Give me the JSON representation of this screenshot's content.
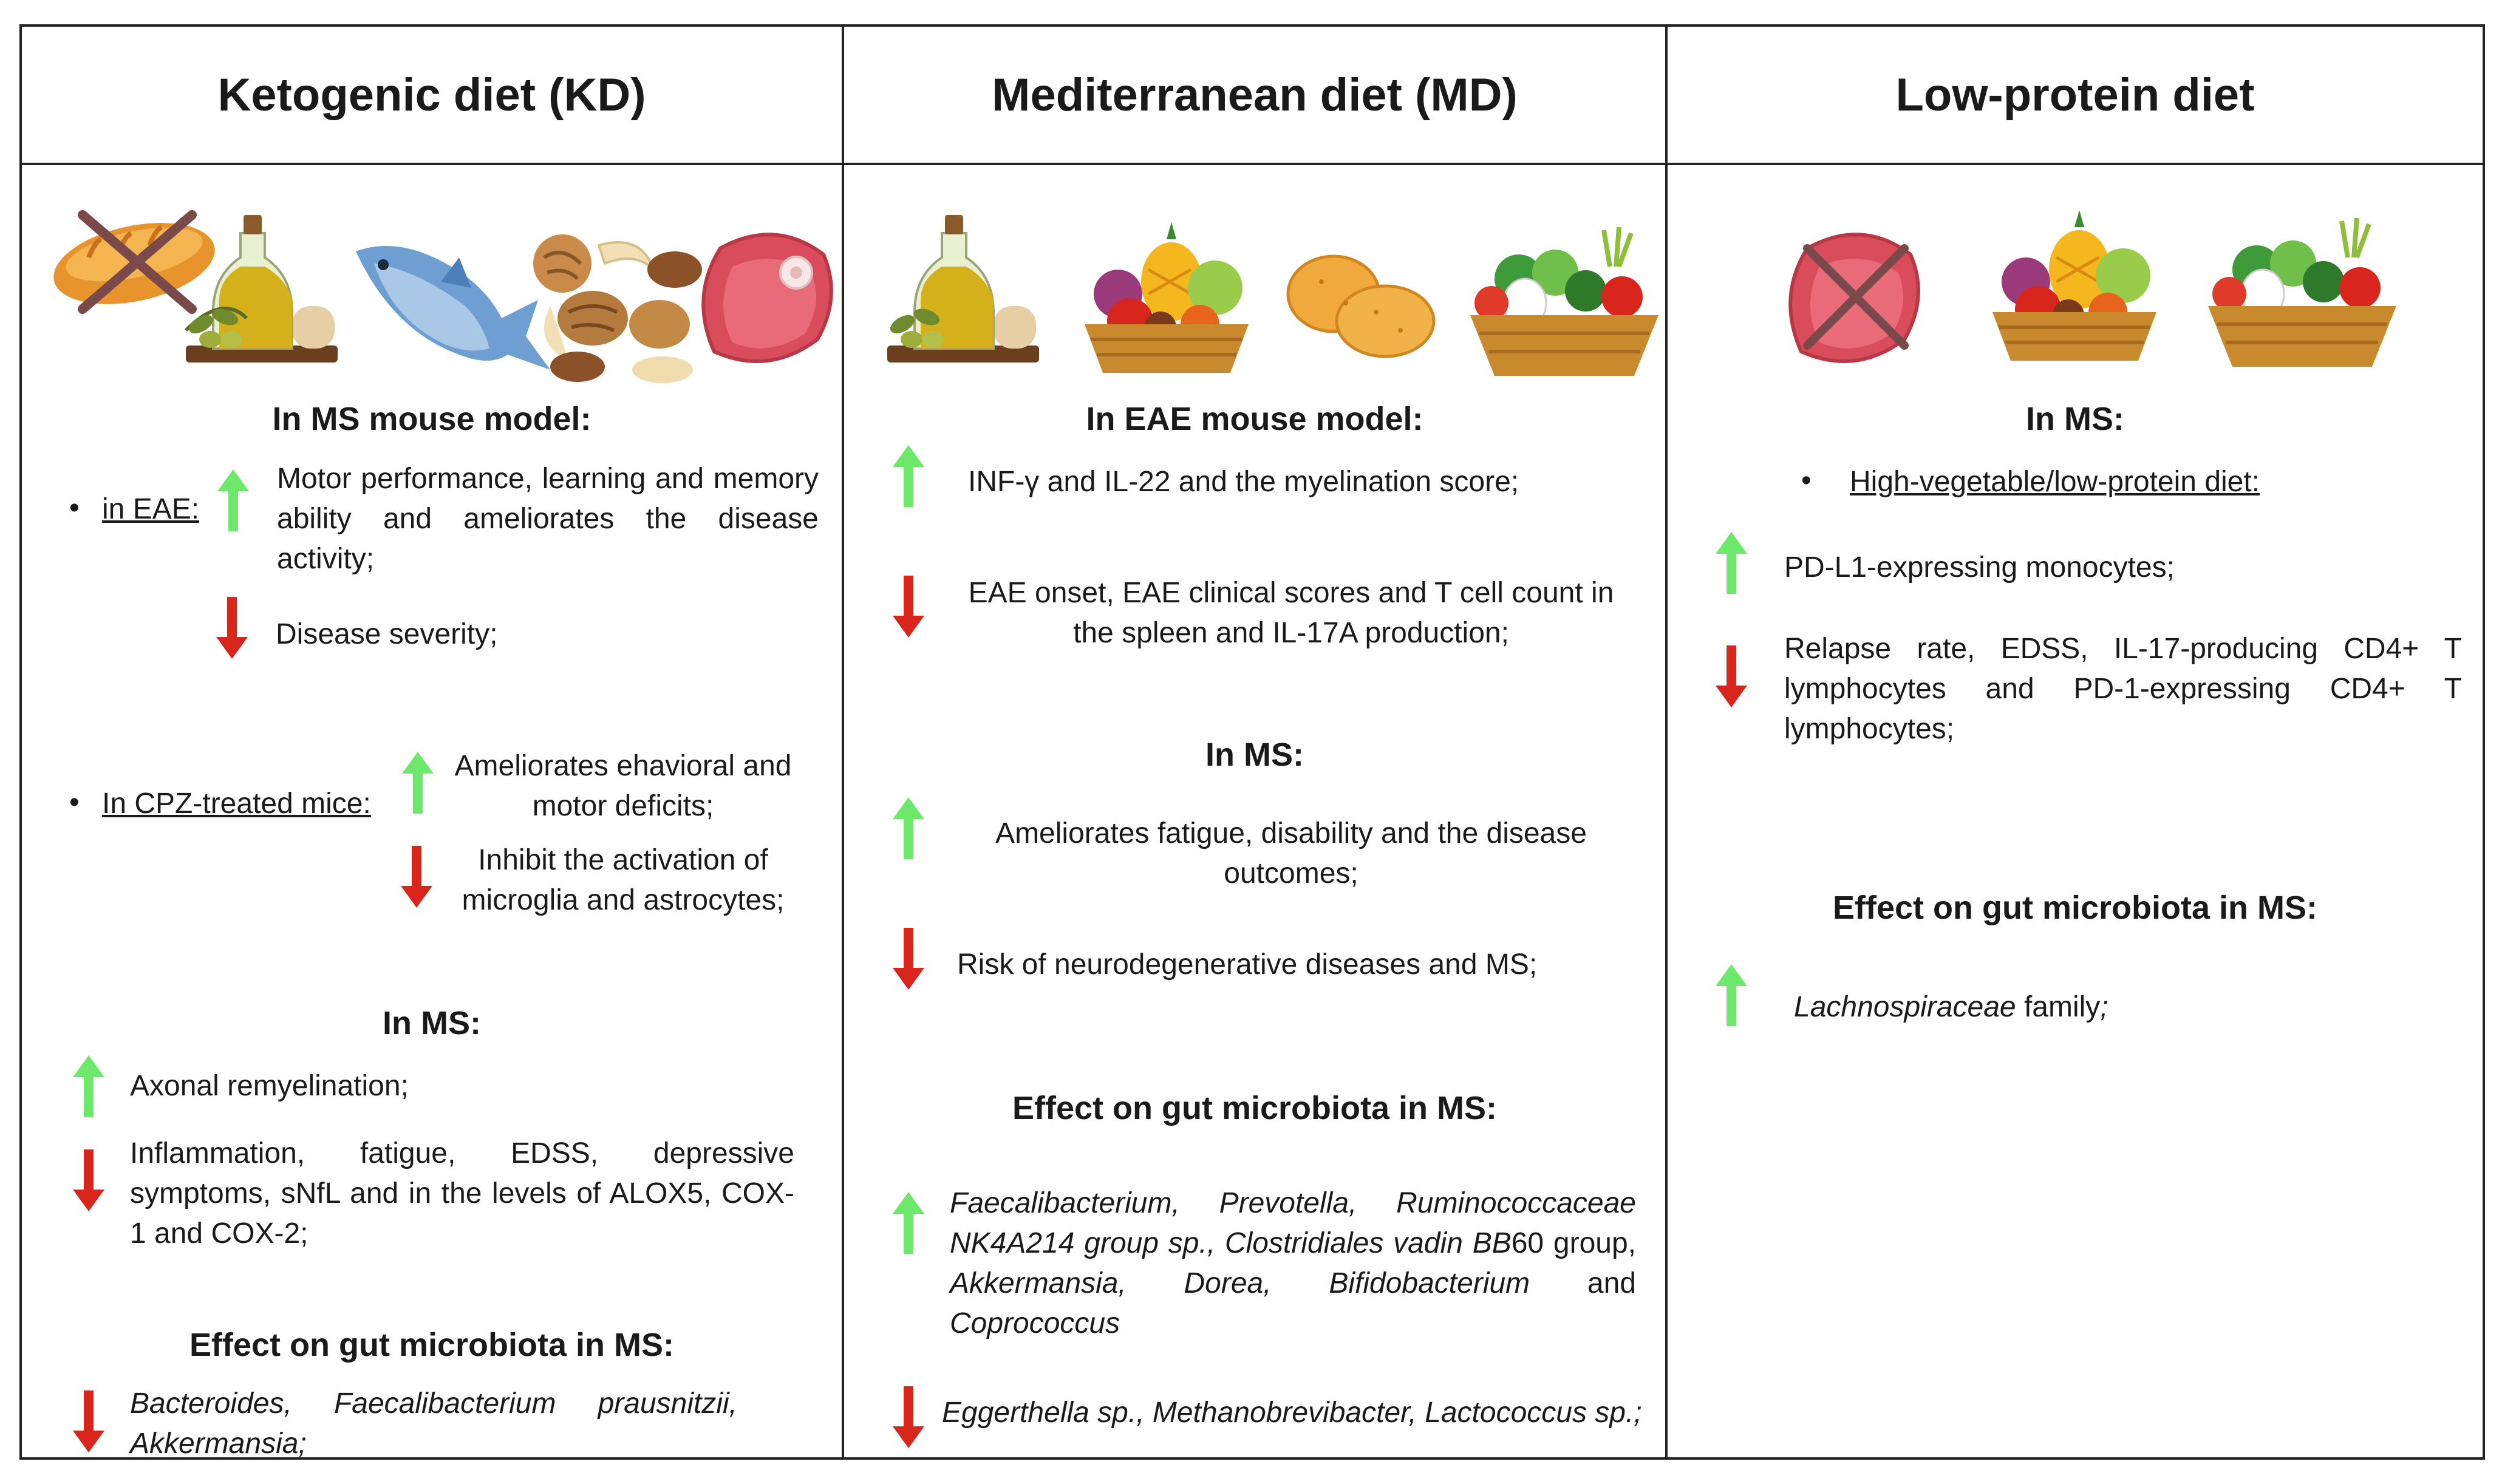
{
  "columns": [
    {
      "title": "Ketogenic diet (KD)"
    },
    {
      "title": "Mediterranean diet (MD)"
    },
    {
      "title": "Low-protein diet"
    }
  ],
  "colors": {
    "up": "#6ee86a",
    "down": "#d8261c",
    "border": "#222222"
  },
  "icons": {
    "kd": [
      "crossed-bread-icon",
      "olive-oil-icon",
      "fish-icon",
      "nuts-icon",
      "meat-icon"
    ],
    "md": [
      "olive-oil-icon",
      "fruit-basket-icon",
      "potatoes-icon",
      "vegetable-basket-icon"
    ],
    "lp": [
      "crossed-meat-icon",
      "fruit-basket-icon",
      "vegetable-basket-icon"
    ]
  },
  "kd": {
    "mouse_heading": "In MS mouse model:",
    "eae_label": "in EAE:",
    "eae_up": "Motor performance, learning and memory ability and ameliorates the disease activity;",
    "eae_down": "Disease severity;",
    "cpz_label": "In CPZ-treated mice:",
    "cpz_up": "Ameliorates ehavioral and motor deficits;",
    "cpz_down": "Inhibit the activation of microglia and astrocytes;",
    "ms_heading": "In MS:",
    "ms_up": "Axonal remyelination;",
    "ms_down": "Inflammation, fatigue, EDSS, depressive symptoms, sNfL and in the levels of ALOX5, COX-1 and COX-2;",
    "gut_heading": "Effect on gut microbiota in MS:",
    "gut_down": "Bacteroides, Faecalibacterium prausnitzii, Akkermansia;"
  },
  "md": {
    "eae_heading": "In EAE mouse model:",
    "eae_up": "INF-γ and IL-22 and the myelination score;",
    "eae_down": "EAE onset, EAE clinical scores and T cell count in the spleen and IL-17A production;",
    "ms_heading": "In MS:",
    "ms_up": "Ameliorates fatigue, disability and the disease outcomes;",
    "ms_down": "Risk of neurodegenerative diseases and MS;",
    "gut_heading": "Effect on gut microbiota in MS:",
    "gut_up_1": "Faecalibacterium, Prevotella, Ruminococcaceae NK4A214 group sp., Clostridiales vadin BB",
    "gut_up_2": "60",
    "gut_up_3": " group, ",
    "gut_up_4": "Akkermansia, Dorea, Bifidobacterium",
    "gut_up_5": " and ",
    "gut_up_6": "Coprococcus",
    "gut_down": "Eggerthella sp., Methanobrevibacter, Lactococcus sp.;"
  },
  "lp": {
    "ms_heading": "In MS:",
    "sub_label": "High-vegetable/low-protein diet:",
    "up": "PD-L1-expressing monocytes;",
    "down": "Relapse rate, EDSS, IL-17-producing CD4+ T lymphocytes and PD-1-expressing CD4+ T lymphocytes;",
    "gut_heading": "Effect on gut microbiota in MS:",
    "gut_up_1": "Lachnospiraceae",
    "gut_up_2": " family",
    "gut_up_3": ";"
  }
}
